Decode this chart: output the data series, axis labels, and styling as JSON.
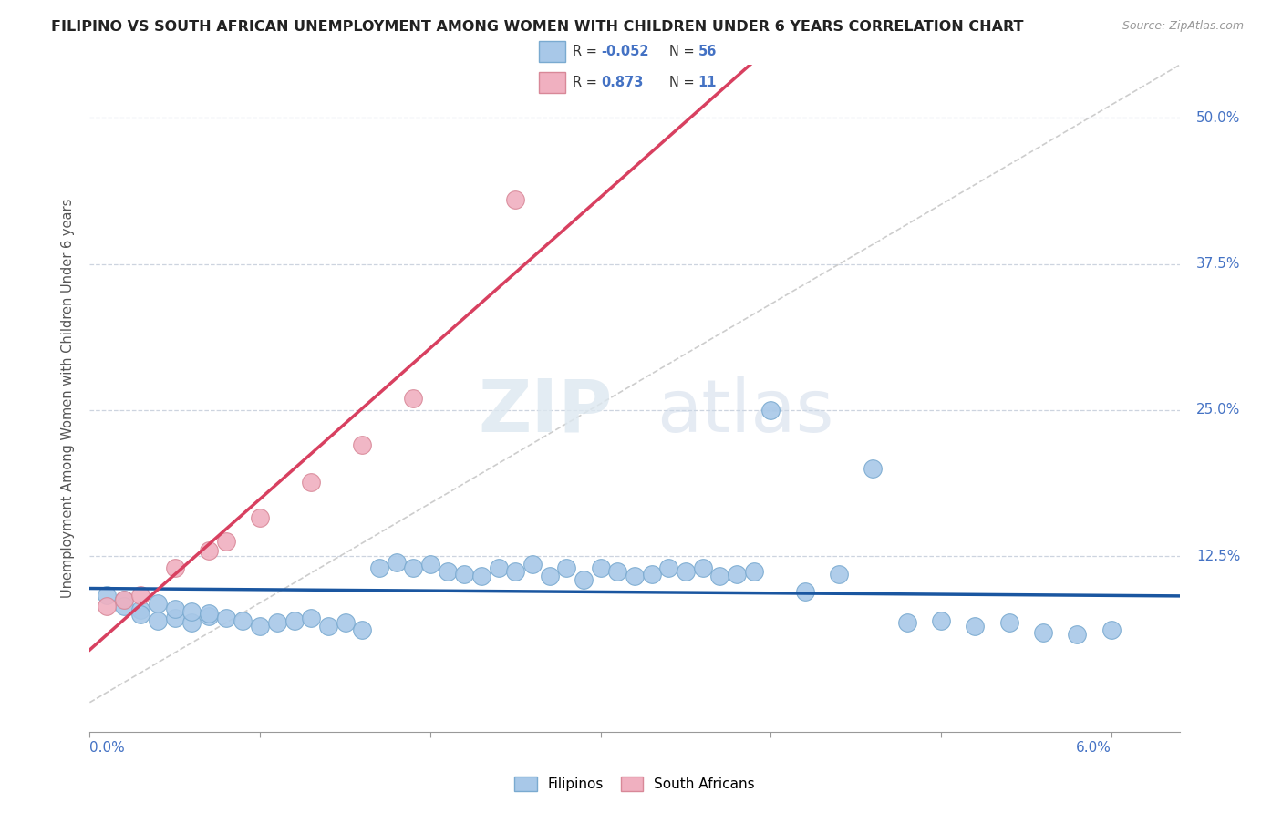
{
  "title": "FILIPINO VS SOUTH AFRICAN UNEMPLOYMENT AMONG WOMEN WITH CHILDREN UNDER 6 YEARS CORRELATION CHART",
  "source": "Source: ZipAtlas.com",
  "ylabel": "Unemployment Among Women with Children Under 6 years",
  "filipino_color": "#a8c8e8",
  "filipino_edge": "#7aaad0",
  "sa_color": "#f0b0c0",
  "sa_edge": "#d88898",
  "trend_filipino_color": "#1a56a0",
  "trend_sa_color": "#d84060",
  "ref_line_color": "#c8c8c8",
  "grid_color": "#c8d0dc",
  "background_color": "#ffffff",
  "fil_x": [
    0.001,
    0.002,
    0.002,
    0.003,
    0.003,
    0.004,
    0.004,
    0.005,
    0.005,
    0.006,
    0.006,
    0.007,
    0.007,
    0.008,
    0.009,
    0.01,
    0.011,
    0.012,
    0.013,
    0.014,
    0.015,
    0.016,
    0.017,
    0.018,
    0.019,
    0.02,
    0.021,
    0.022,
    0.023,
    0.024,
    0.025,
    0.026,
    0.027,
    0.028,
    0.029,
    0.03,
    0.031,
    0.032,
    0.033,
    0.034,
    0.035,
    0.036,
    0.037,
    0.038,
    0.039,
    0.04,
    0.042,
    0.044,
    0.046,
    0.048,
    0.05,
    0.052,
    0.054,
    0.056,
    0.058,
    0.06
  ],
  "fil_y": [
    0.092,
    0.088,
    0.082,
    0.079,
    0.075,
    0.085,
    0.07,
    0.072,
    0.08,
    0.068,
    0.078,
    0.074,
    0.076,
    0.072,
    0.07,
    0.065,
    0.068,
    0.07,
    0.072,
    0.065,
    0.068,
    0.062,
    0.115,
    0.12,
    0.115,
    0.118,
    0.112,
    0.11,
    0.108,
    0.115,
    0.112,
    0.118,
    0.108,
    0.115,
    0.105,
    0.115,
    0.112,
    0.108,
    0.11,
    0.115,
    0.112,
    0.115,
    0.108,
    0.11,
    0.112,
    0.25,
    0.095,
    0.11,
    0.2,
    0.068,
    0.07,
    0.065,
    0.068,
    0.06,
    0.058,
    0.062
  ],
  "sa_x": [
    0.001,
    0.002,
    0.003,
    0.005,
    0.007,
    0.008,
    0.01,
    0.013,
    0.016,
    0.019,
    0.025
  ],
  "sa_y": [
    0.082,
    0.088,
    0.092,
    0.115,
    0.13,
    0.138,
    0.158,
    0.188,
    0.22,
    0.26,
    0.43
  ],
  "xlim": [
    0.0,
    0.064
  ],
  "ylim": [
    -0.025,
    0.545
  ],
  "ytick_vals": [
    0.0,
    0.125,
    0.25,
    0.375,
    0.5
  ],
  "ytick_right_labels": [
    "",
    "12.5%",
    "25.0%",
    "37.5%",
    "50.0%"
  ],
  "marker_size": 200
}
